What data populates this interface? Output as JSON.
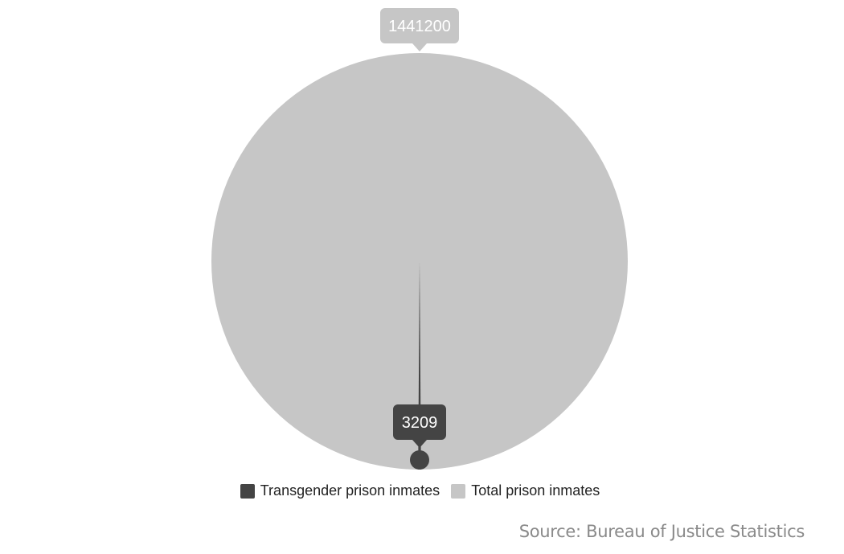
{
  "chart_data": {
    "type": "pie",
    "title": "",
    "series": [
      {
        "name": "Transgender prison inmates",
        "value": 3209,
        "color": "#444444"
      },
      {
        "name": "Total prison inmates",
        "value": 1441200,
        "color": "#c6c6c6"
      }
    ],
    "data_labels": [
      "1441200",
      "3209"
    ],
    "legend_position": "bottom-center"
  },
  "legend": {
    "items": [
      {
        "label": "Transgender prison inmates",
        "color": "#444444"
      },
      {
        "label": "Total prison inmates",
        "color": "#c6c6c6"
      }
    ]
  },
  "source": "Source: Bureau of Justice Statistics"
}
